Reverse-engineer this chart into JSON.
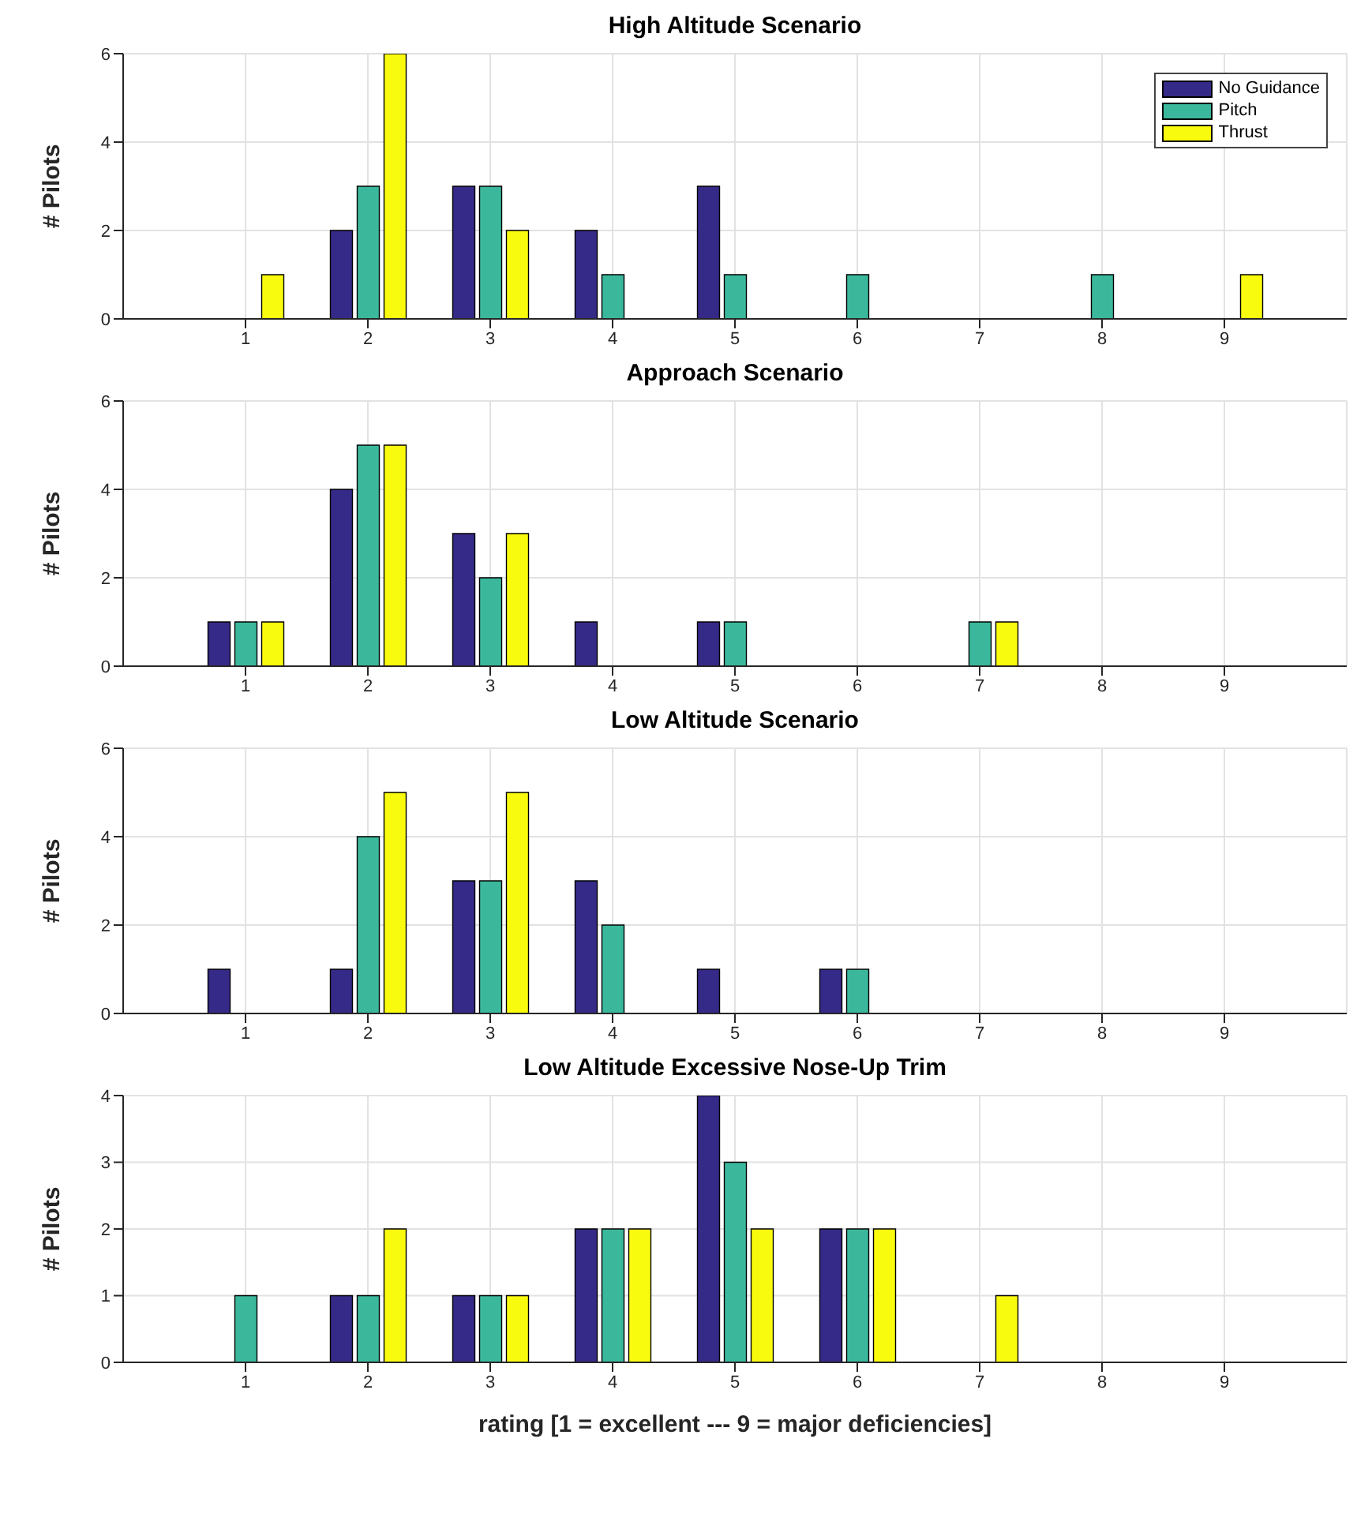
{
  "chart_data": [
    {
      "type": "bar",
      "title": "High Altitude Scenario",
      "ylabel": "# Pilots",
      "x": [
        1,
        2,
        3,
        4,
        5,
        6,
        7,
        8,
        9
      ],
      "xlim": [
        0,
        10
      ],
      "xticks": [
        1,
        2,
        3,
        4,
        5,
        6,
        7,
        8,
        9
      ],
      "ylim": [
        0,
        6
      ],
      "yticks": [
        0,
        2,
        4,
        6
      ],
      "grid": true,
      "legend": "top right",
      "series": [
        {
          "name": "No Guidance",
          "color": "#352a87",
          "values": [
            0,
            2,
            3,
            2,
            3,
            0,
            0,
            0,
            0
          ]
        },
        {
          "name": "Pitch",
          "color": "#3bb89c",
          "values": [
            0,
            3,
            3,
            1,
            1,
            1,
            0,
            1,
            0
          ]
        },
        {
          "name": "Thrust",
          "color": "#f9fb0e",
          "values": [
            1,
            6,
            2,
            0,
            0,
            0,
            0,
            0,
            1
          ]
        }
      ]
    },
    {
      "type": "bar",
      "title": "Approach Scenario",
      "ylabel": "# Pilots",
      "x": [
        1,
        2,
        3,
        4,
        5,
        6,
        7,
        8,
        9
      ],
      "xlim": [
        0,
        10
      ],
      "xticks": [
        1,
        2,
        3,
        4,
        5,
        6,
        7,
        8,
        9
      ],
      "ylim": [
        0,
        6
      ],
      "yticks": [
        0,
        2,
        4,
        6
      ],
      "grid": true,
      "series": [
        {
          "color": "#352a87",
          "values": [
            1,
            4,
            3,
            1,
            1,
            0,
            0,
            0,
            0
          ]
        },
        {
          "color": "#3bb89c",
          "values": [
            1,
            5,
            2,
            0,
            1,
            0,
            1,
            0,
            0
          ]
        },
        {
          "color": "#f9fb0e",
          "values": [
            1,
            5,
            3,
            0,
            0,
            0,
            1,
            0,
            0
          ]
        }
      ]
    },
    {
      "type": "bar",
      "title": "Low Altitude Scenario",
      "ylabel": "# Pilots",
      "x": [
        1,
        2,
        3,
        4,
        5,
        6,
        7,
        8,
        9
      ],
      "xlim": [
        0,
        10
      ],
      "xticks": [
        1,
        2,
        3,
        4,
        5,
        6,
        7,
        8,
        9
      ],
      "ylim": [
        0,
        6
      ],
      "yticks": [
        0,
        2,
        4,
        6
      ],
      "grid": true,
      "series": [
        {
          "color": "#352a87",
          "values": [
            1,
            1,
            3,
            3,
            1,
            1,
            0,
            0,
            0
          ]
        },
        {
          "color": "#3bb89c",
          "values": [
            0,
            4,
            3,
            2,
            0,
            1,
            0,
            0,
            0
          ]
        },
        {
          "color": "#f9fb0e",
          "values": [
            0,
            5,
            5,
            0,
            0,
            0,
            0,
            0,
            0
          ]
        }
      ]
    },
    {
      "type": "bar",
      "title": "Low Altitude Excessive Nose-Up Trim",
      "ylabel": "# Pilots",
      "xlabel": "rating [1 = excellent --- 9 = major deficiencies]",
      "x": [
        1,
        2,
        3,
        4,
        5,
        6,
        7,
        8,
        9
      ],
      "xlim": [
        0,
        10
      ],
      "xticks": [
        1,
        2,
        3,
        4,
        5,
        6,
        7,
        8,
        9
      ],
      "ylim": [
        0,
        4
      ],
      "yticks": [
        0,
        1,
        2,
        3,
        4
      ],
      "grid": true,
      "series": [
        {
          "color": "#352a87",
          "values": [
            0,
            1,
            1,
            2,
            4,
            2,
            0,
            0,
            0
          ]
        },
        {
          "color": "#3bb89c",
          "values": [
            1,
            1,
            1,
            2,
            3,
            2,
            0,
            0,
            0
          ]
        },
        {
          "color": "#f9fb0e",
          "values": [
            0,
            2,
            1,
            2,
            2,
            2,
            1,
            0,
            0
          ]
        }
      ]
    }
  ]
}
